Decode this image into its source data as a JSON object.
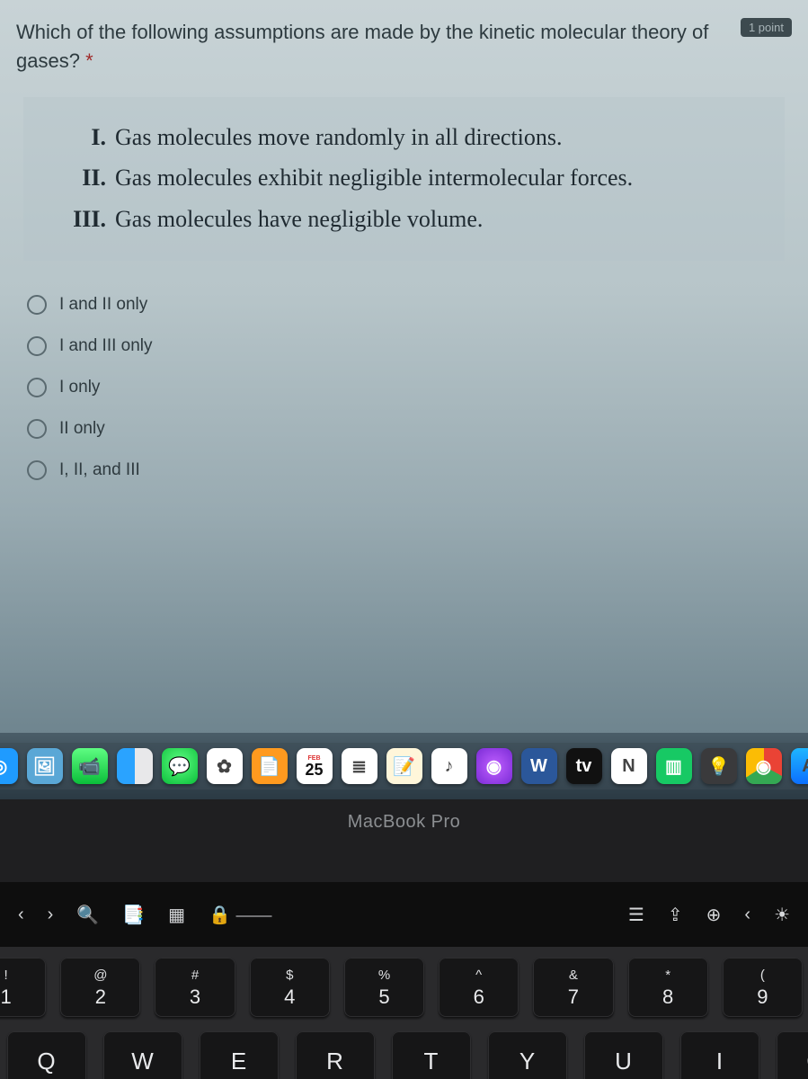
{
  "question": {
    "title": "Which of the following assumptions are made by the kinetic molecular theory of gases?",
    "required_marker": "*",
    "points_label": "1 point"
  },
  "statements": [
    {
      "num": "I.",
      "text": "Gas molecules move randomly in all directions."
    },
    {
      "num": "II.",
      "text": "Gas molecules exhibit negligible intermolecular forces."
    },
    {
      "num": "III.",
      "text": "Gas molecules have negligible volume."
    }
  ],
  "options": [
    "I and II only",
    "I and III only",
    "I only",
    "II only",
    "I, II, and III"
  ],
  "dock": {
    "icons": [
      {
        "name": "safari",
        "bg": "#1f9bff",
        "glyph": "◎"
      },
      {
        "name": "preview",
        "bg": "#5aa7d6",
        "glyph": "🖼"
      },
      {
        "name": "facetime",
        "bg": "linear-gradient(180deg,#5efc82,#0bbf3a)",
        "glyph": "📹"
      },
      {
        "name": "finder",
        "bg": "linear-gradient(90deg,#2aa3ff 50%,#e8e8ea 50%)",
        "glyph": ""
      },
      {
        "name": "messages",
        "bg": "radial-gradient(circle at 50% 40%,#5efc82,#0bbf3a)",
        "glyph": "💬"
      },
      {
        "name": "photos",
        "bg": "#ffffff",
        "glyph": "✿"
      },
      {
        "name": "pages",
        "bg": "#ff9a1f",
        "glyph": "📄"
      },
      {
        "name": "calendar",
        "bg": "#ffffff",
        "glyph": "25",
        "top": "FEB"
      },
      {
        "name": "reminders",
        "bg": "#ffffff",
        "glyph": "≣"
      },
      {
        "name": "notes",
        "bg": "#fff6da",
        "glyph": "📝"
      },
      {
        "name": "music",
        "bg": "#ffffff",
        "glyph": "♪"
      },
      {
        "name": "podcasts",
        "bg": "radial-gradient(circle,#c060ff,#7a2bd6)",
        "glyph": "◉"
      },
      {
        "name": "word",
        "bg": "#2b579a",
        "glyph": "W"
      },
      {
        "name": "appletv",
        "bg": "#111111",
        "glyph": "tv"
      },
      {
        "name": "notion",
        "bg": "#ffffff",
        "glyph": "N"
      },
      {
        "name": "numbers",
        "bg": "#17c964",
        "glyph": "▥"
      },
      {
        "name": "lamp",
        "bg": "#3a3a3c",
        "glyph": "💡"
      },
      {
        "name": "chrome",
        "bg": "conic-gradient(#ea4335 0 33%,#34a853 0 66%,#fbbc05 0)",
        "glyph": "◉"
      },
      {
        "name": "appstore",
        "bg": "linear-gradient(180deg,#1fb6ff,#0b6fff)",
        "glyph": "A"
      }
    ]
  },
  "hinge": {
    "label": "MacBook Pro"
  },
  "touchbar": {
    "items": [
      {
        "name": "back",
        "glyph": "‹"
      },
      {
        "name": "fwd",
        "glyph": "›"
      },
      {
        "name": "search",
        "glyph": "🔍"
      },
      {
        "name": "bookmark",
        "glyph": "📑"
      },
      {
        "name": "tabs",
        "glyph": "▦"
      },
      {
        "name": "url",
        "glyph": "🔒 ⎯⎯⎯⎯"
      },
      {
        "name": "reader",
        "glyph": "☰"
      },
      {
        "name": "share",
        "glyph": "⇪"
      },
      {
        "name": "newtab",
        "glyph": "⊕"
      },
      {
        "name": "back2",
        "glyph": "‹"
      },
      {
        "name": "bright",
        "glyph": "☀"
      }
    ]
  },
  "keyboard": {
    "num_row": [
      {
        "top": "!",
        "bot": "1"
      },
      {
        "top": "@",
        "bot": "2"
      },
      {
        "top": "#",
        "bot": "3"
      },
      {
        "top": "$",
        "bot": "4"
      },
      {
        "top": "%",
        "bot": "5"
      },
      {
        "top": "^",
        "bot": "6"
      },
      {
        "top": "&",
        "bot": "7"
      },
      {
        "top": "*",
        "bot": "8"
      },
      {
        "top": "(",
        "bot": "9"
      }
    ],
    "letter_row": [
      "Q",
      "W",
      "E",
      "R",
      "T",
      "Y",
      "U",
      "I",
      "O"
    ]
  }
}
